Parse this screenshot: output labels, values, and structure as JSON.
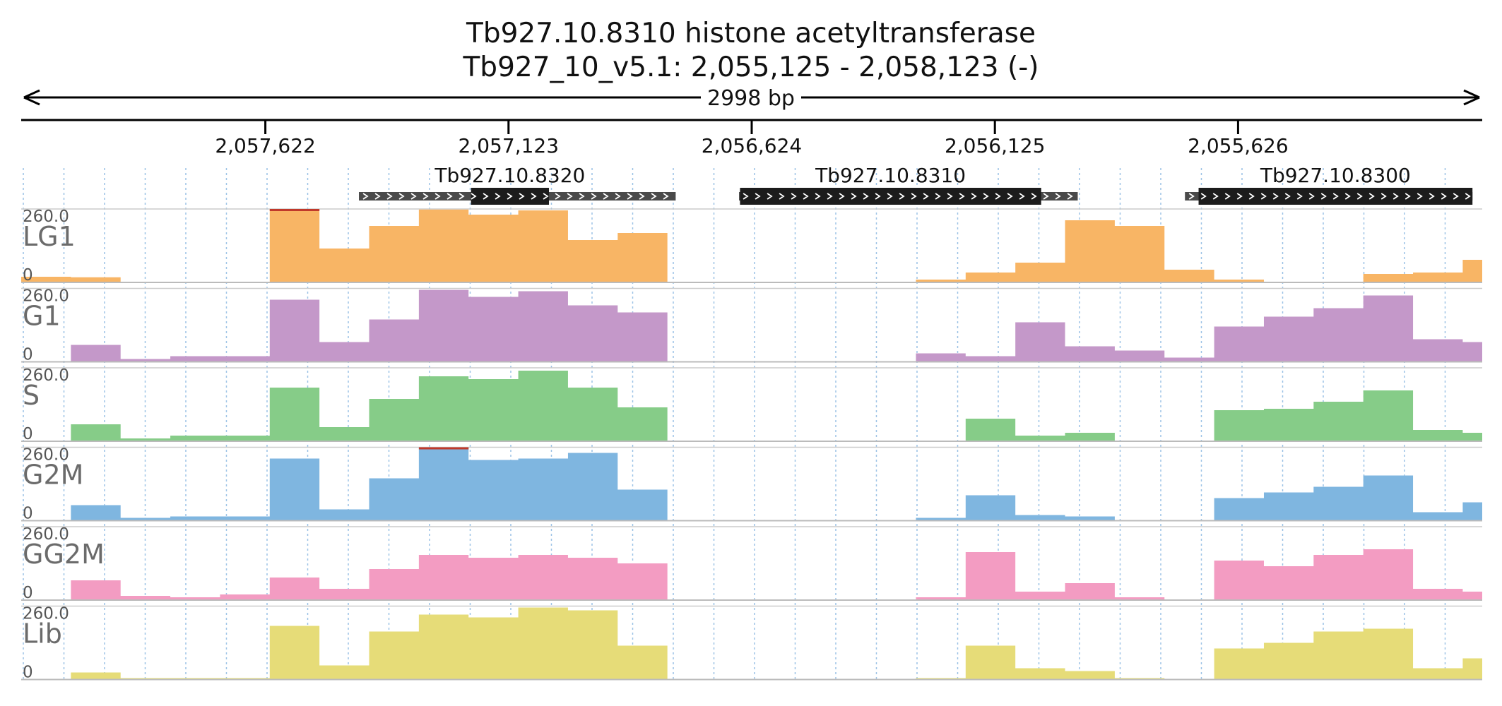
{
  "title": {
    "line1": "Tb927.10.8310  histone acetyltransferase",
    "line2": "Tb927_10_v5.1: 2,055,125 - 2,058,123 (-)"
  },
  "ruler": {
    "span_label": "2998 bp"
  },
  "chart_data": {
    "type": "area",
    "region": {
      "chromosome": "Tb927_10_v5.1",
      "start": 2055125,
      "end": 2058123,
      "strand": "-",
      "length_bp": 2998
    },
    "x_axis": {
      "direction": "descending",
      "left": 2058123,
      "right": 2055125,
      "ticks": [
        2057622,
        2057123,
        2056624,
        2056125,
        2055626
      ],
      "tick_labels": [
        "2,057,622",
        "2,057,123",
        "2,056,624",
        "2,056,125",
        "2,055,626"
      ],
      "grid": "dotted-vertical"
    },
    "genes": [
      {
        "name": "Tb927.10.8320",
        "utr_start": 2057430,
        "cds_start": 2057200,
        "cds_end": 2057040,
        "utr_end": 2056780,
        "direction": "right"
      },
      {
        "name": "Tb927.10.8310",
        "utr_start": 2056650,
        "cds_start": 2056648,
        "cds_end": 2056030,
        "utr_end": 2055955,
        "direction": "right"
      },
      {
        "name": "Tb927.10.8300",
        "utr_start": 2055735,
        "cds_start": 2055707,
        "cds_end": 2055145,
        "utr_end": 2055145,
        "direction": "right"
      }
    ],
    "y_axis": {
      "max": 260.0,
      "min": 0,
      "max_label": "260.0",
      "min_label": "0"
    },
    "x_sample": [
      2058123,
      2058021,
      2057919,
      2057817,
      2057715,
      2057613,
      2057511,
      2057409,
      2057307,
      2057205,
      2057103,
      2057001,
      2056899,
      2056797,
      2056695,
      2056593,
      2056491,
      2056389,
      2056287,
      2056185,
      2056083,
      2055981,
      2055879,
      2055777,
      2055675,
      2055573,
      2055471,
      2055369,
      2055267,
      2055165
    ],
    "series": [
      {
        "name": "LG1",
        "color": "#f8b565",
        "values": [
          20,
          18,
          0,
          0,
          0,
          260,
          120,
          200,
          258,
          240,
          255,
          150,
          175,
          0,
          0,
          0,
          0,
          0,
          10,
          35,
          70,
          220,
          200,
          45,
          10,
          0,
          0,
          30,
          35,
          80
        ]
      },
      {
        "name": "G1",
        "color": "#c498c9",
        "values": [
          0,
          60,
          10,
          20,
          20,
          220,
          70,
          150,
          255,
          230,
          250,
          200,
          175,
          0,
          0,
          0,
          0,
          0,
          30,
          20,
          140,
          55,
          40,
          15,
          125,
          160,
          190,
          235,
          80,
          70
        ]
      },
      {
        "name": "S",
        "color": "#86cc88",
        "values": [
          0,
          60,
          10,
          20,
          20,
          190,
          50,
          150,
          230,
          220,
          250,
          190,
          120,
          0,
          0,
          0,
          0,
          0,
          0,
          80,
          20,
          30,
          0,
          0,
          110,
          115,
          140,
          180,
          40,
          30
        ]
      },
      {
        "name": "G2M",
        "color": "#7fb6e0",
        "values": [
          0,
          55,
          10,
          15,
          15,
          220,
          40,
          150,
          260,
          215,
          220,
          240,
          110,
          0,
          0,
          0,
          0,
          0,
          10,
          90,
          20,
          15,
          0,
          0,
          80,
          100,
          120,
          160,
          30,
          65
        ]
      },
      {
        "name": "GG2M",
        "color": "#f39cc2",
        "values": [
          0,
          70,
          15,
          10,
          20,
          80,
          40,
          110,
          160,
          150,
          160,
          150,
          130,
          0,
          0,
          0,
          0,
          0,
          10,
          170,
          30,
          60,
          10,
          0,
          140,
          120,
          160,
          180,
          40,
          30
        ]
      },
      {
        "name": "Lib",
        "color": "#e6dc78",
        "values": [
          0,
          25,
          5,
          5,
          5,
          190,
          50,
          170,
          230,
          220,
          255,
          245,
          120,
          0,
          0,
          0,
          0,
          0,
          5,
          120,
          40,
          30,
          5,
          0,
          110,
          130,
          170,
          180,
          40,
          75
        ]
      }
    ],
    "clipped_marker_color": "#c0392b"
  }
}
